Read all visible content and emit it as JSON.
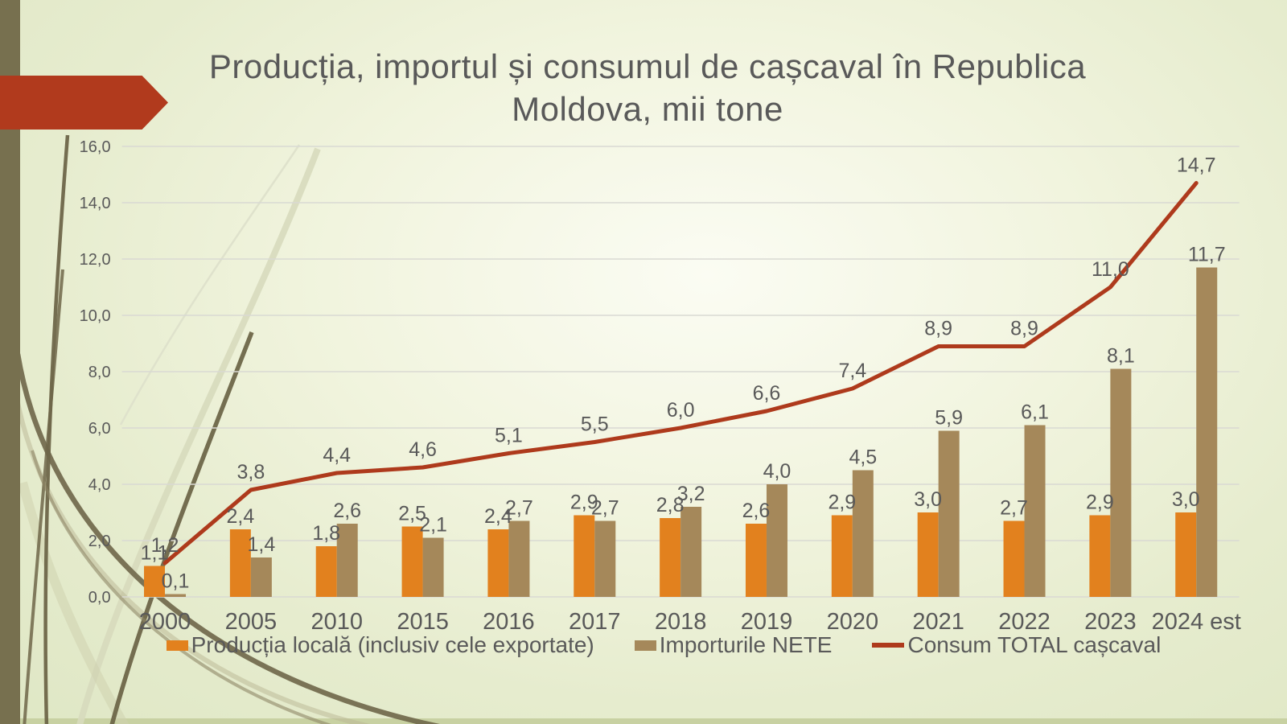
{
  "slide": {
    "title": "Producția, importul și consumul de cașcaval în Republica Moldova, mii tone"
  },
  "chart_data": {
    "type": "bar",
    "subtype": "grouped bars with overlay line",
    "title": "Producția, importul și consumul de cașcaval în Republica Moldova, mii tone",
    "categories": [
      "2000",
      "2005",
      "2010",
      "2015",
      "2016",
      "2017",
      "2018",
      "2019",
      "2020",
      "2021",
      "2022",
      "2023",
      "2024 est"
    ],
    "series": [
      {
        "name": "Producția locală (inclusiv cele exportate)",
        "type": "bar",
        "color": "#E2811E",
        "values": [
          1.1,
          2.4,
          1.8,
          2.5,
          2.4,
          2.9,
          2.8,
          2.6,
          2.9,
          3.0,
          2.7,
          2.9,
          3.0
        ]
      },
      {
        "name": "Importurile NETE",
        "type": "bar",
        "color": "#A5885A",
        "values": [
          0.1,
          1.4,
          2.6,
          2.1,
          2.7,
          2.7,
          3.2,
          4.0,
          4.5,
          5.9,
          6.1,
          8.1,
          11.7
        ]
      },
      {
        "name": "Consum TOTAL cașcaval",
        "type": "line",
        "color": "#AE3A1C",
        "values": [
          1.2,
          3.8,
          4.4,
          4.6,
          5.1,
          5.5,
          6.0,
          6.6,
          7.4,
          8.9,
          8.9,
          11.0,
          14.7
        ]
      }
    ],
    "ylim": [
      0,
      16
    ],
    "ytick_step": 2,
    "decimal_separator": ",",
    "grid": true,
    "legend_position": "bottom",
    "data_labels": true,
    "label_color": "#595959",
    "gridline_color": "#d9d9d3"
  },
  "theme": {
    "stripe_color": "#77704f",
    "arrow_color": "#b13a1d",
    "text_color": "#595959"
  }
}
